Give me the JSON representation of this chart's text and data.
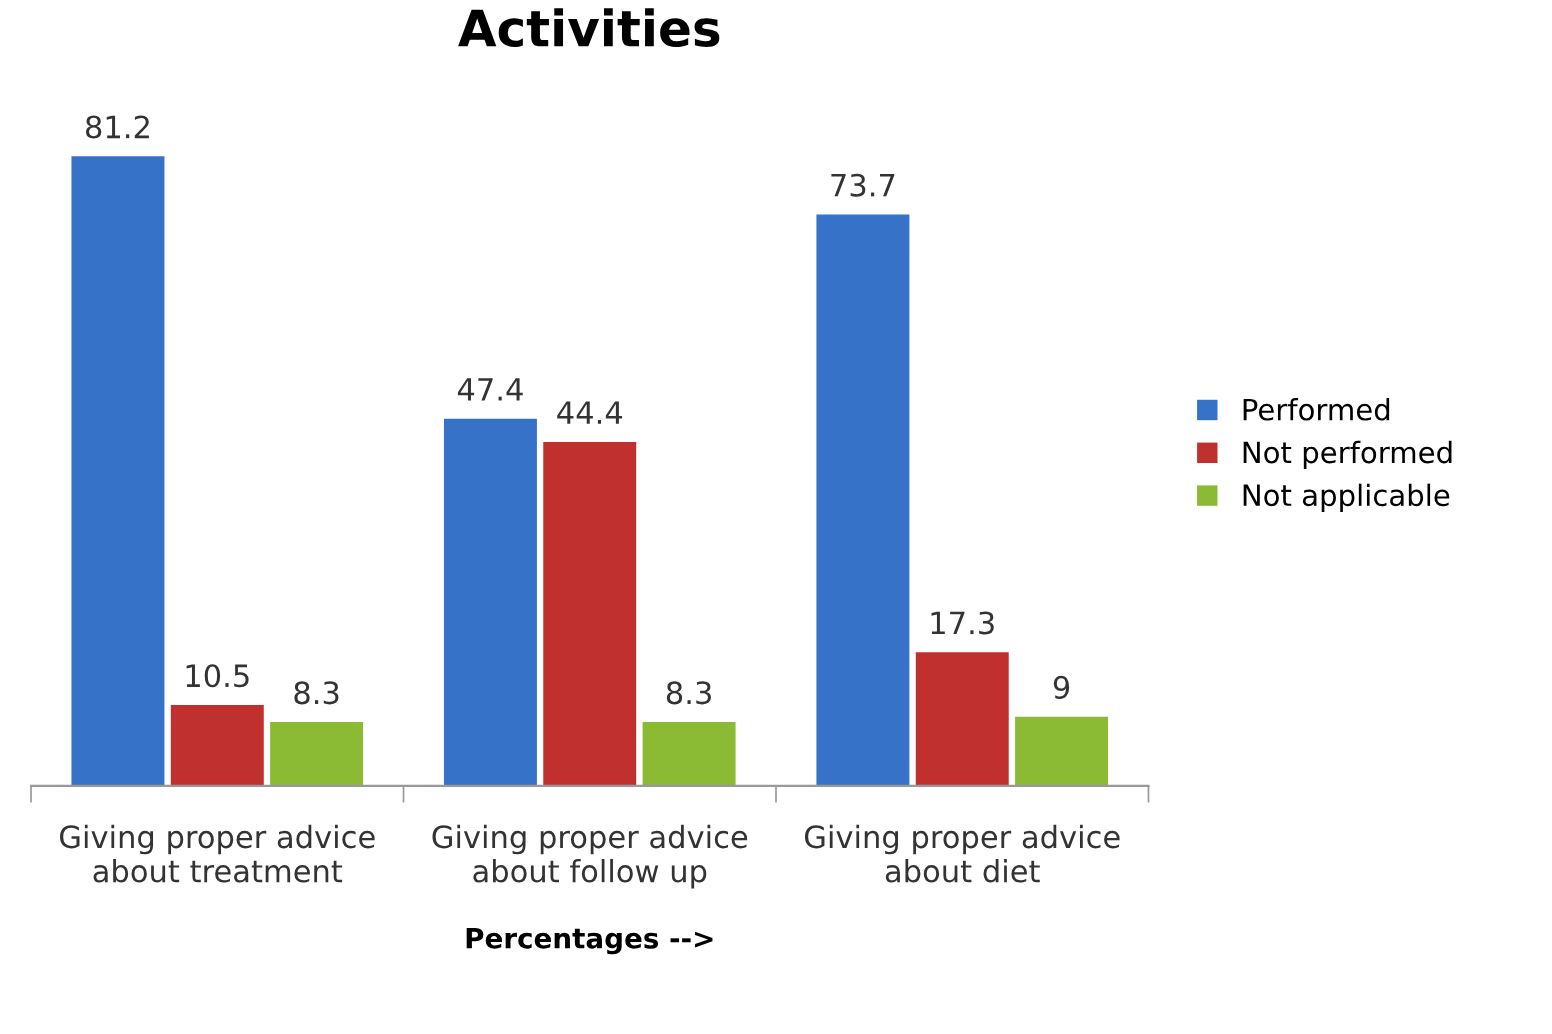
{
  "chart_data": {
    "type": "bar",
    "title": "Activities",
    "xlabel": "Percentages -->",
    "categories": [
      "Giving proper advice\nabout treatment",
      "Giving proper advice\nabout follow up",
      "Giving proper advice\nabout diet"
    ],
    "series": [
      {
        "name": "Performed",
        "color": "#3572c8",
        "values": [
          81.2,
          47.4,
          73.7
        ]
      },
      {
        "name": "Not performed",
        "color": "#c0302e",
        "values": [
          10.5,
          44.4,
          17.3
        ]
      },
      {
        "name": "Not applicable",
        "color": "#8bbb34",
        "values": [
          8.3,
          8.3,
          9
        ]
      }
    ],
    "data_labels": true,
    "legend": "right"
  }
}
